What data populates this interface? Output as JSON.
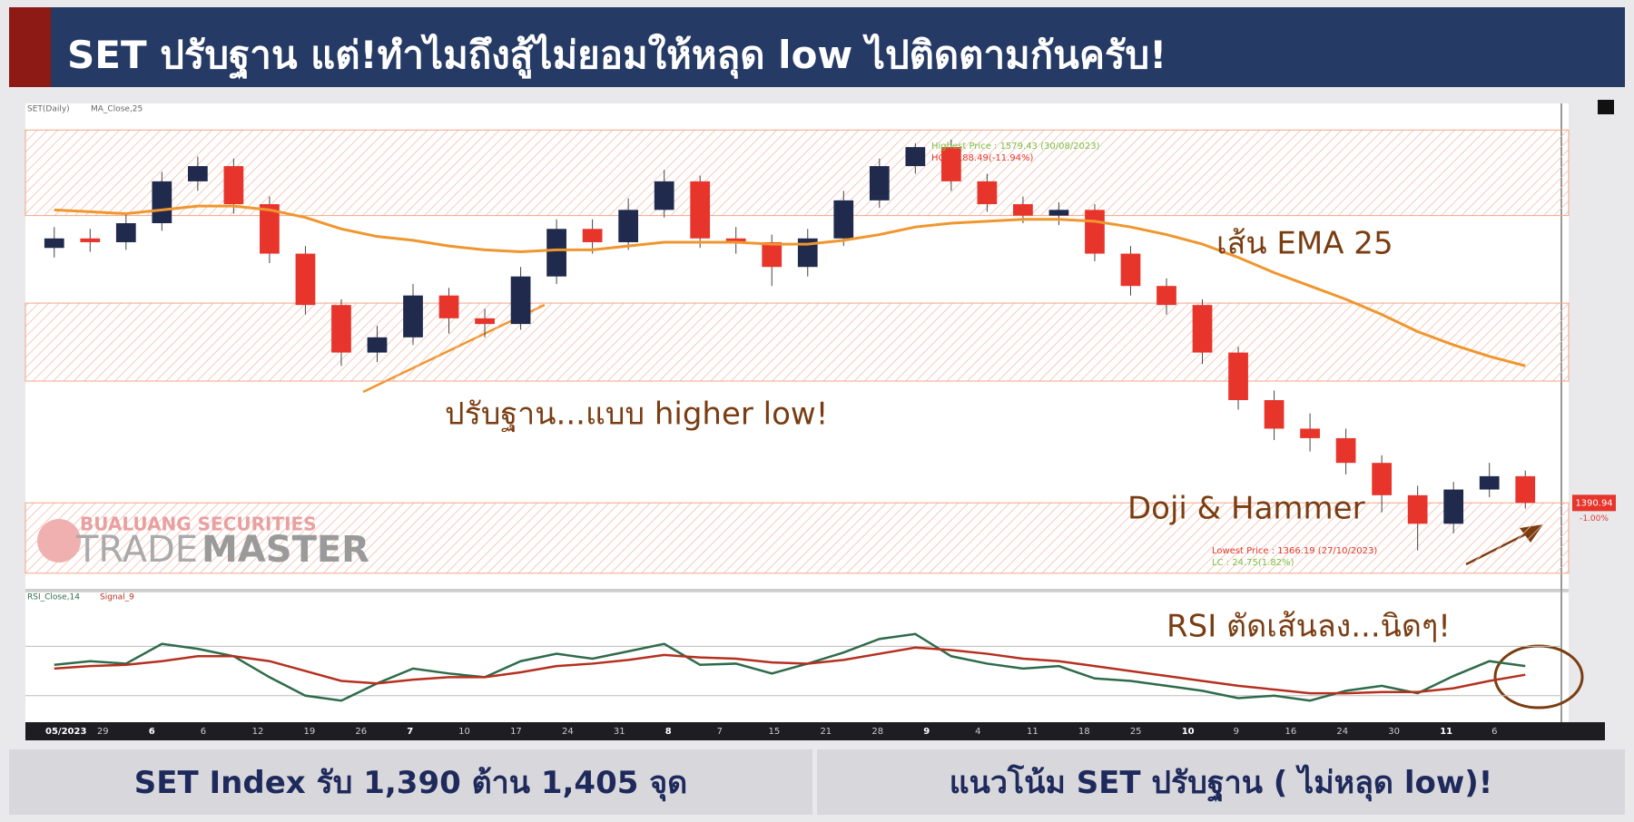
{
  "header": {
    "title": "SET ปรับฐาน แต่!ทำไมถึงสู้ไม่ยอมให้หลุด low ไปติดตามกันครับ!"
  },
  "chart_data": {
    "type": "candlestick",
    "legend": [
      "SET(Daily)",
      "MA_Close,25"
    ],
    "open": [
      1525,
      1530,
      1528,
      1538,
      1560,
      1568,
      1548,
      1522,
      1495,
      1470,
      1478,
      1500,
      1488,
      1485,
      1510,
      1535,
      1528,
      1545,
      1560,
      1530,
      1528,
      1515,
      1530,
      1550,
      1568,
      1578,
      1560,
      1548,
      1542,
      1545,
      1522,
      1505,
      1495,
      1470,
      1445,
      1430,
      1425,
      1412,
      1395,
      1380,
      1398,
      1405
    ],
    "high": [
      1536,
      1535,
      1543,
      1565,
      1573,
      1572,
      1552,
      1526,
      1498,
      1484,
      1506,
      1504,
      1493,
      1515,
      1540,
      1540,
      1551,
      1566,
      1563,
      1536,
      1532,
      1535,
      1555,
      1572,
      1580,
      1582,
      1564,
      1552,
      1549,
      1548,
      1526,
      1509,
      1498,
      1473,
      1450,
      1438,
      1430,
      1416,
      1400,
      1402,
      1412,
      1408
    ],
    "low": [
      1520,
      1523,
      1524,
      1534,
      1555,
      1543,
      1517,
      1490,
      1463,
      1465,
      1474,
      1480,
      1478,
      1482,
      1506,
      1522,
      1524,
      1541,
      1525,
      1522,
      1505,
      1510,
      1526,
      1546,
      1564,
      1555,
      1544,
      1538,
      1537,
      1518,
      1500,
      1490,
      1464,
      1440,
      1424,
      1418,
      1406,
      1386,
      1366,
      1375,
      1394,
      1388
    ],
    "close": [
      1530,
      1528,
      1538,
      1560,
      1568,
      1548,
      1522,
      1495,
      1470,
      1478,
      1500,
      1488,
      1485,
      1510,
      1535,
      1528,
      1545,
      1560,
      1530,
      1528,
      1515,
      1530,
      1550,
      1568,
      1578,
      1560,
      1548,
      1542,
      1545,
      1522,
      1505,
      1495,
      1470,
      1445,
      1430,
      1425,
      1412,
      1395,
      1380,
      1398,
      1405,
      1391
    ],
    "ema": [
      1545,
      1544,
      1543,
      1545,
      1547,
      1547,
      1545,
      1541,
      1535,
      1531,
      1529,
      1526,
      1524,
      1523,
      1524,
      1524,
      1526,
      1528,
      1528,
      1528,
      1527,
      1527,
      1529,
      1532,
      1536,
      1538,
      1539,
      1540,
      1540,
      1539,
      1536,
      1532,
      1527,
      1520,
      1512,
      1505,
      1498,
      1490,
      1481,
      1474,
      1468,
      1463
    ],
    "up_color": "#1f2a4d",
    "down_color": "#e8352b",
    "ema_color": "#f0962e",
    "ylim": [
      1352,
      1600
    ],
    "zones": [
      [
        1542,
        1587
      ],
      [
        1455,
        1496
      ],
      [
        1354,
        1391
      ]
    ],
    "last_price": 1390.94,
    "last_change": "-1.00%",
    "highest": "Highest Price : 1579.43 (30/08/2023)",
    "highest_change": "HC : -188.49(-11.94%)",
    "lowest": "Lowest Price : 1366.19 (27/10/2023)",
    "lowest_change": "LC : 24.75(1.82%)",
    "x_labels": [
      "05/2023",
      "29",
      "6",
      "6",
      "12",
      "19",
      "26",
      "7",
      "10",
      "17",
      "24",
      "31",
      "8",
      "7",
      "15",
      "21",
      "28",
      "9",
      "4",
      "11",
      "18",
      "25",
      "10",
      "9",
      "16",
      "24",
      "30",
      "11",
      "6"
    ]
  },
  "rsi_chart": {
    "type": "line",
    "series": [
      {
        "name": "RSI_Close,14",
        "color": "#2e6b4a",
        "values": [
          55,
          58,
          56,
          72,
          68,
          62,
          45,
          30,
          26,
          40,
          52,
          48,
          45,
          58,
          64,
          60,
          66,
          72,
          55,
          56,
          48,
          56,
          65,
          76,
          80,
          62,
          56,
          52,
          54,
          44,
          42,
          38,
          34,
          28,
          30,
          26,
          34,
          38,
          32,
          46,
          58,
          54
        ]
      },
      {
        "name": "Signal_9",
        "color": "#b5301f",
        "values": [
          52,
          54,
          55,
          58,
          62,
          62,
          58,
          50,
          42,
          40,
          43,
          45,
          45,
          49,
          54,
          56,
          59,
          63,
          61,
          60,
          57,
          56,
          59,
          64,
          69,
          67,
          64,
          60,
          58,
          54,
          50,
          46,
          42,
          38,
          35,
          32,
          32,
          33,
          33,
          36,
          42,
          47
        ]
      }
    ],
    "ylim": [
      10,
      110
    ],
    "levels": [
      70,
      30
    ]
  },
  "annotations": {
    "ema": "เส้น EMA 25",
    "higher_low": "ปรับฐาน...แบบ higher low!",
    "doji": "Doji & Hammer",
    "rsi": "RSI ตัดเส้นลง...นิดๆ!"
  },
  "logo": {
    "company": "BUALUANG SECURITIES",
    "trade": "TRADE",
    "master": "MASTER"
  },
  "footer": [
    "SET Index รับ 1,390 ต้าน 1,405 จุด",
    "แนวโน้ม SET ปรับฐาน ( ไม่หลุด low)!"
  ]
}
